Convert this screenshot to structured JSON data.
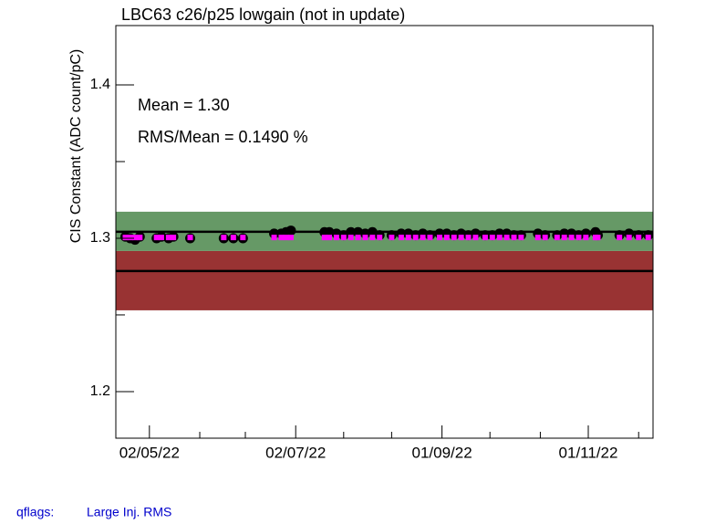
{
  "chart_data": {
    "type": "scatter",
    "title": "LBC63 c26/p25 lowgain (not in update)",
    "ylabel": "CIS Constant (ADC count/pC)",
    "annotations": [
      "Mean = 1.30",
      "RMS/Mean = 0.1490 %"
    ],
    "footer": {
      "label": "qflags:",
      "value": "Large Inj. RMS"
    },
    "xlim": [
      "2022-04-18",
      "2022-11-28"
    ],
    "ylim": [
      1.1696,
      1.4387
    ],
    "xticks": [
      {
        "value": "2022-05-02",
        "label": "02/05/22"
      },
      {
        "value": "2022-07-02",
        "label": "02/07/22"
      },
      {
        "value": "2022-09-01",
        "label": "01/09/22"
      },
      {
        "value": "2022-11-01",
        "label": "01/11/22"
      }
    ],
    "xminorticks": [
      "2022-05-23",
      "2022-06-11",
      "2022-07-22",
      "2022-08-11",
      "2022-09-21",
      "2022-10-12",
      "2022-11-22"
    ],
    "yticks": [
      1.2,
      1.3,
      1.4
    ],
    "yminorticks": [
      1.25,
      1.35
    ],
    "bands": [
      {
        "ylim": [
          1.253,
          1.2917
        ],
        "color": "#993333"
      },
      {
        "ylim": [
          1.2917,
          1.3173
        ],
        "color": "#669966"
      }
    ],
    "hlines": [
      1.3042,
      1.2786
    ],
    "x": [
      "2022-04-22",
      "2022-04-24",
      "2022-04-26",
      "2022-04-28",
      "2022-05-05",
      "2022-05-07",
      "2022-05-10",
      "2022-05-12",
      "2022-05-19",
      "2022-06-02",
      "2022-06-06",
      "2022-06-10",
      "2022-06-23",
      "2022-06-26",
      "2022-06-28",
      "2022-06-30",
      "2022-07-14",
      "2022-07-16",
      "2022-07-19",
      "2022-07-22",
      "2022-07-25",
      "2022-07-28",
      "2022-07-31",
      "2022-08-03",
      "2022-08-06",
      "2022-08-11",
      "2022-08-15",
      "2022-08-18",
      "2022-08-21",
      "2022-08-24",
      "2022-08-27",
      "2022-08-31",
      "2022-09-03",
      "2022-09-06",
      "2022-09-09",
      "2022-09-12",
      "2022-09-15",
      "2022-09-19",
      "2022-09-22",
      "2022-09-25",
      "2022-09-28",
      "2022-10-01",
      "2022-10-04",
      "2022-10-11",
      "2022-10-14",
      "2022-10-19",
      "2022-10-22",
      "2022-10-25",
      "2022-10-28",
      "2022-10-31",
      "2022-11-04",
      "2022-11-05",
      "2022-11-14",
      "2022-11-18",
      "2022-11-22",
      "2022-11-26"
    ],
    "series": [
      {
        "color": "#000000",
        "marker": "circle",
        "values": [
          1.301,
          1.3,
          1.299,
          1.301,
          1.3,
          1.301,
          1.3,
          1.301,
          1.3,
          1.3,
          1.3,
          1.3,
          1.303,
          1.303,
          1.304,
          1.305,
          1.304,
          1.304,
          1.303,
          1.302,
          1.304,
          1.304,
          1.303,
          1.304,
          1.302,
          1.302,
          1.303,
          1.303,
          1.302,
          1.303,
          1.302,
          1.303,
          1.303,
          1.302,
          1.303,
          1.302,
          1.303,
          1.302,
          1.302,
          1.303,
          1.303,
          1.302,
          1.302,
          1.303,
          1.302,
          1.302,
          1.303,
          1.303,
          1.302,
          1.303,
          1.304,
          1.302,
          1.302,
          1.303,
          1.302,
          1.302
        ]
      },
      {
        "color": "#ff00ff",
        "marker": "square",
        "values": [
          1.3005,
          1.3005,
          1.3005,
          1.3005,
          1.3005,
          1.3005,
          1.3005,
          1.3005,
          1.3005,
          1.3005,
          1.3005,
          1.3005,
          1.3005,
          1.3005,
          1.3005,
          1.3005,
          1.3005,
          1.3005,
          1.3005,
          1.3005,
          1.3005,
          1.3005,
          1.3005,
          1.3005,
          1.3005,
          1.3005,
          1.3005,
          1.3005,
          1.3005,
          1.3005,
          1.3005,
          1.3005,
          1.3005,
          1.3005,
          1.3005,
          1.3005,
          1.3005,
          1.3005,
          1.3005,
          1.3005,
          1.3005,
          1.3005,
          1.3005,
          1.3005,
          1.3005,
          1.3005,
          1.3005,
          1.3005,
          1.3005,
          1.3005,
          1.3005,
          1.3005,
          1.3005,
          1.3005,
          1.3005,
          1.3005
        ]
      }
    ]
  }
}
